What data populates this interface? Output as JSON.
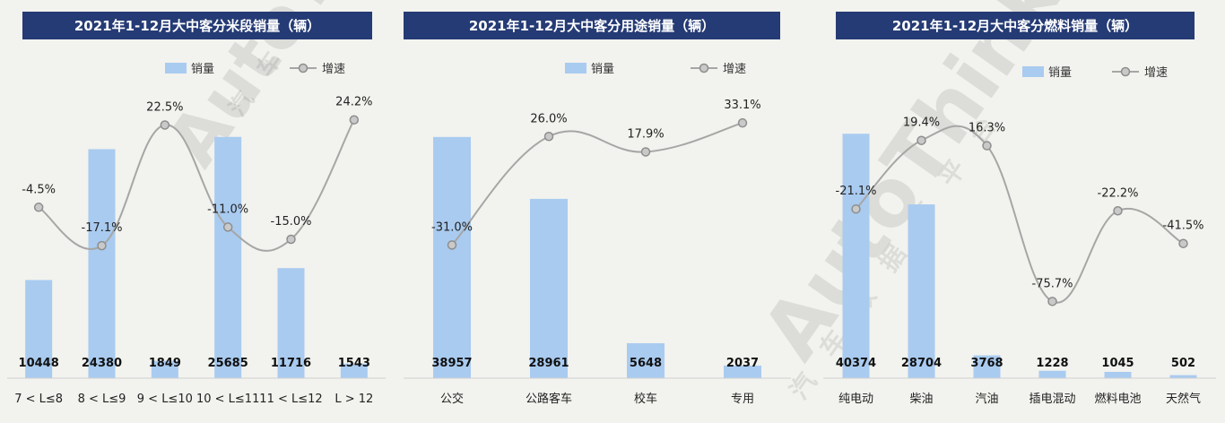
{
  "chart_data": [
    {
      "type": "bar",
      "title": "2021年1-12月大中客分米段销量（辆）",
      "legend": {
        "bar": "销量",
        "line": "增速",
        "position": "top"
      },
      "categories": [
        "7 < L≤8",
        "8 < L≤9",
        "9 < L≤10",
        "10 < L≤11",
        "11 < L≤12",
        "L > 12"
      ],
      "series": [
        {
          "name": "销量",
          "type": "bar",
          "values": [
            10448,
            24380,
            1849,
            25685,
            11716,
            1543
          ],
          "labels": [
            "10448",
            "24380",
            "1849",
            "25685",
            "11716",
            "1543"
          ]
        },
        {
          "name": "增速",
          "type": "line",
          "values": [
            -4.5,
            -17.1,
            22.5,
            -11.0,
            -15.0,
            24.2
          ],
          "labels": [
            "-4.5%",
            "-17.1%",
            "22.5%",
            "-11.0%",
            "-15.0%",
            "24.2%"
          ]
        }
      ],
      "bar_ylim": [
        0,
        29000
      ],
      "line_ylim": [
        -60,
        40
      ]
    },
    {
      "type": "bar",
      "title": "2021年1-12月大中客分用途销量（辆）",
      "legend": {
        "bar": "销量",
        "line": "增速",
        "position": "top"
      },
      "categories": [
        "公交",
        "公路客车",
        "校车",
        "专用"
      ],
      "series": [
        {
          "name": "销量",
          "type": "bar",
          "values": [
            38957,
            28961,
            5648,
            2037
          ],
          "labels": [
            "38957",
            "28961",
            "5648",
            "2037"
          ]
        },
        {
          "name": "增速",
          "type": "line",
          "values": [
            -31.0,
            26.0,
            17.9,
            33.1
          ],
          "labels": [
            "-31.0%",
            "26.0%",
            "17.9%",
            "33.1%"
          ]
        }
      ],
      "bar_ylim": [
        0,
        44000
      ],
      "line_ylim": [
        -100,
        60
      ]
    },
    {
      "type": "bar",
      "title": "2021年1-12月大中客分燃料销量（辆）",
      "legend": {
        "bar": "销量",
        "line": "增速",
        "position": "top"
      },
      "categories": [
        "纯电动",
        "柴油",
        "汽油",
        "插电混动",
        "燃料电池",
        "天然气"
      ],
      "series": [
        {
          "name": "销量",
          "type": "bar",
          "values": [
            40374,
            28704,
            3768,
            1228,
            1045,
            502
          ],
          "labels": [
            "40374",
            "28704",
            "3768",
            "1228",
            "1045",
            "502"
          ]
        },
        {
          "name": "增速",
          "type": "line",
          "values": [
            -21.1,
            19.4,
            16.3,
            -75.7,
            -22.2,
            -41.5
          ],
          "labels": [
            "-21.1%",
            "19.4%",
            "16.3%",
            "-75.7%",
            "-22.2%",
            "-41.5%"
          ]
        }
      ],
      "bar_ylim": [
        0,
        45000
      ],
      "line_ylim": [
        -120,
        60
      ]
    }
  ],
  "watermark": {
    "brand": "AutoThinker",
    "sub": "汽车数据库平台"
  },
  "colors": {
    "bar": "#a9cbf0",
    "line": "#a6a6a6",
    "marker_fill": "#c9c9c9",
    "marker_stroke": "#8e8e8e",
    "title_bg": "#253b75"
  }
}
